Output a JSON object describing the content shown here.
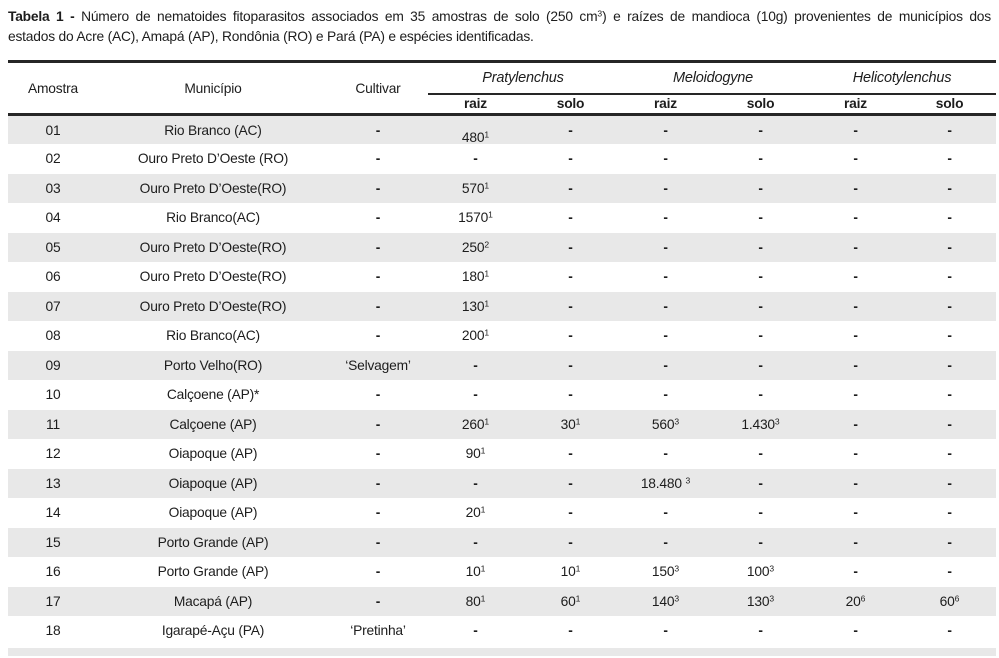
{
  "caption": {
    "label": "Tabela 1 -",
    "lines": [
      "Número de nematoides fitoparasitos associados em 35 amostras de solo (250 cm^3) e raízes de mandioca (10g) provenientes de municípios dos",
      "estados do Acre (AC), Amapá (AP), Rondônia (RO) e Pará (PA) e espécies identificadas."
    ]
  },
  "table": {
    "static_columns": [
      "Amostra",
      "Município",
      "Cultivar"
    ],
    "groups": [
      {
        "name": "Pratylenchus",
        "sub": [
          "raiz",
          "solo"
        ]
      },
      {
        "name": "Meloidogyne",
        "sub": [
          "raiz",
          "solo"
        ]
      },
      {
        "name": "Helicotylenchus",
        "sub": [
          "raiz",
          "solo"
        ]
      }
    ],
    "rows": [
      {
        "amostra": "01",
        "municipio": "Rio Branco (AC)",
        "cultivar": "-",
        "values": [
          "480^1",
          "-",
          "-",
          "-",
          "-",
          "-"
        ]
      },
      {
        "amostra": "02",
        "municipio": "Ouro Preto D’Oeste (RO)",
        "cultivar": "-",
        "values": [
          "-",
          "-",
          "-",
          "-",
          "-",
          "-"
        ]
      },
      {
        "amostra": "03",
        "municipio": "Ouro Preto D’Oeste(RO)",
        "cultivar": "-",
        "values": [
          "570^1",
          "-",
          "-",
          "-",
          "-",
          "-"
        ]
      },
      {
        "amostra": "04",
        "municipio": "Rio Branco(AC)",
        "cultivar": "-",
        "values": [
          "1570^1",
          "-",
          "-",
          "-",
          "-",
          "-"
        ]
      },
      {
        "amostra": "05",
        "municipio": "Ouro Preto D’Oeste(RO)",
        "cultivar": "-",
        "values": [
          "250^2",
          "-",
          "-",
          "-",
          "-",
          "-"
        ]
      },
      {
        "amostra": "06",
        "municipio": "Ouro Preto D’Oeste(RO)",
        "cultivar": "-",
        "values": [
          "180^1",
          "-",
          "-",
          "-",
          "-",
          "-"
        ]
      },
      {
        "amostra": "07",
        "municipio": "Ouro Preto D’Oeste(RO)",
        "cultivar": "-",
        "values": [
          "130^1",
          "-",
          "-",
          "-",
          "-",
          "-"
        ]
      },
      {
        "amostra": "08",
        "municipio": "Rio Branco(AC)",
        "cultivar": "-",
        "values": [
          "200^1",
          "-",
          "-",
          "-",
          "-",
          "-"
        ]
      },
      {
        "amostra": "09",
        "municipio": "Porto Velho(RO)",
        "cultivar": "‘Selvagem’",
        "values": [
          "-",
          "-",
          "-",
          "-",
          "-",
          "-"
        ]
      },
      {
        "amostra": "10",
        "municipio": "Calçoene (AP)*",
        "cultivar": "-",
        "values": [
          "-",
          "-",
          "-",
          "-",
          "-",
          "-"
        ]
      },
      {
        "amostra": "11",
        "municipio": "Calçoene (AP)",
        "cultivar": "-",
        "values": [
          "260^1",
          "30^1",
          "560^3",
          "1.430^3",
          "-",
          "-"
        ]
      },
      {
        "amostra": "12",
        "municipio": "Oiapoque (AP)",
        "cultivar": "-",
        "values": [
          "90^1",
          "-",
          "-",
          "-",
          "-",
          "-"
        ]
      },
      {
        "amostra": "13",
        "municipio": "Oiapoque (AP)",
        "cultivar": "-",
        "values": [
          "-",
          "-",
          "18.480 ^3",
          "-",
          "-",
          "-"
        ]
      },
      {
        "amostra": "14",
        "municipio": "Oiapoque (AP)",
        "cultivar": "-",
        "values": [
          "20^1",
          "-",
          "-",
          "-",
          "-",
          "-"
        ]
      },
      {
        "amostra": "15",
        "municipio": "Porto Grande (AP)",
        "cultivar": "-",
        "values": [
          "-",
          "-",
          "-",
          "-",
          "-",
          "-"
        ]
      },
      {
        "amostra": "16",
        "municipio": "Porto Grande (AP)",
        "cultivar": "-",
        "values": [
          "10^1",
          "10^1",
          "150^3",
          "100^3",
          "-",
          "-"
        ]
      },
      {
        "amostra": "17",
        "municipio": "Macapá (AP)",
        "cultivar": "-",
        "values": [
          "80^1",
          "60^1",
          "140^3",
          "130^3",
          "20^6",
          "60^6"
        ]
      },
      {
        "amostra": "18",
        "municipio": "Igarapé-Açu (PA)",
        "cultivar": "‘Pretinha’",
        "values": [
          "-",
          "-",
          "-",
          "-",
          "-",
          "-"
        ]
      }
    ]
  },
  "colors": {
    "stripe": "#e8e8e8",
    "rule": "#262626",
    "text": "#1d1d1d"
  }
}
